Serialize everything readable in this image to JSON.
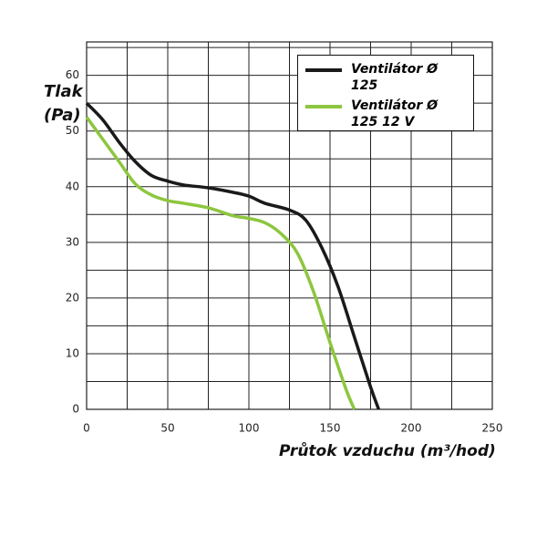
{
  "chart_data": {
    "type": "line",
    "y_label": "Tlak (Pa)",
    "x_label": "Průtok vzduchu (m³/hod)",
    "xlim": [
      0,
      250
    ],
    "xticks": [
      0,
      50,
      100,
      150,
      200,
      250
    ],
    "xgrid": [
      0,
      25,
      50,
      75,
      100,
      125,
      150,
      175,
      200,
      225,
      250
    ],
    "ylim": [
      0,
      66
    ],
    "yticks": [
      0,
      10,
      20,
      30,
      40,
      50,
      60
    ],
    "ygrid": [
      0,
      5,
      10,
      15,
      20,
      25,
      30,
      35,
      40,
      45,
      50,
      55,
      60,
      65
    ],
    "grid": true,
    "legend": "upper right",
    "series": [
      {
        "name": "Ventilátor Ø 125",
        "color": "#1a1a1a",
        "x": [
          0,
          10,
          20,
          30,
          40,
          50,
          60,
          75,
          90,
          100,
          110,
          125,
          135,
          145,
          155,
          165,
          175,
          180
        ],
        "values": [
          55,
          52,
          48,
          44.5,
          42,
          41,
          40.3,
          39.8,
          39,
          38.3,
          37,
          35.8,
          34,
          29,
          22,
          13,
          4,
          0
        ]
      },
      {
        "name": "Ventilátor Ø 125 12 V",
        "color": "#8dc63f",
        "x": [
          0,
          10,
          20,
          30,
          40,
          50,
          60,
          75,
          90,
          100,
          110,
          120,
          130,
          140,
          150,
          160,
          165
        ],
        "values": [
          52.5,
          48.5,
          44.5,
          40.5,
          38.5,
          37.5,
          37,
          36.2,
          34.8,
          34.3,
          33.5,
          31.5,
          28,
          21,
          12,
          3.5,
          0
        ]
      }
    ]
  }
}
